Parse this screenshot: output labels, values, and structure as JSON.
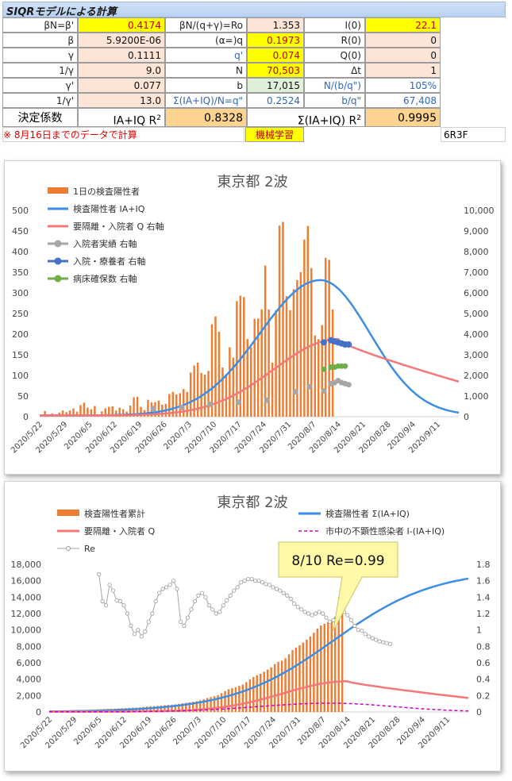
{
  "title": "SIQRモデルによる計算",
  "table": {
    "row1": {
      "a_label": "βN=β'",
      "a_val": "0.4174",
      "b_label": "βN/(q+γ)=Ro",
      "b_val": "1.353",
      "c_label": "I(0)",
      "c_val": "22.1"
    },
    "row2": {
      "a_label": "β",
      "a_val": "5.9200E-06",
      "b_label": "(α=)q",
      "b_val": "0.1973",
      "c_label": "R(0)",
      "c_val": "0"
    },
    "row3": {
      "a_label": "γ",
      "a_val": "0.1111",
      "b_label": "q'",
      "b_val": "0.074",
      "c_label": "Q(0)",
      "c_val": "0"
    },
    "row4": {
      "a_label": "1/γ",
      "a_val": "9.0",
      "b_label": "N",
      "b_val": "70,503",
      "c_label": "Δt",
      "c_val": "1"
    },
    "row5": {
      "a_label": "γ'",
      "a_val": "0.077",
      "b_label": "b",
      "b_val": "17,015",
      "c_label": "N/(b/q\")",
      "c_val": "105%"
    },
    "row6": {
      "a_label": "1/γ'",
      "a_val": "13.0",
      "b_label": "Σ(IA+IQ)/N=q\"",
      "b_val": "0.2524",
      "c_label": "b/q\"",
      "c_val": "67,408"
    },
    "row7": {
      "a_label": "決定係数",
      "mid_label": "IA+IQ R",
      "mid_sup": "2",
      "a_val": "0.8328",
      "c_label": "Σ(IA+IQ) R",
      "c_sup": "2",
      "c_val": "0.9995"
    },
    "note": "※ 8月16日までのデータで計算",
    "ml_label": "機械学習",
    "code": "6R3F"
  },
  "chart_data": [
    {
      "type": "bar",
      "title": "東京都 2波",
      "x_ticks": [
        "2020/5/22",
        "2020/5/29",
        "2020/6/5",
        "2020/6/12",
        "2020/6/19",
        "2020/6/26",
        "2020/7/3",
        "2020/7/10",
        "2020/7/17",
        "2020/7/24",
        "2020/7/31",
        "2020/8/7",
        "2020/8/14",
        "2020/8/21",
        "2020/8/28",
        "2020/9/4",
        "2020/9/11"
      ],
      "x_range_days": [
        0,
        118
      ],
      "ylim_left": [
        0,
        500
      ],
      "ylim_right": [
        0,
        10000
      ],
      "left_ticks": [
        "0",
        "50",
        "100",
        "150",
        "200",
        "250",
        "300",
        "350",
        "400",
        "450",
        "500"
      ],
      "right_ticks": [
        "0",
        "1,000",
        "2,000",
        "3,000",
        "4,000",
        "5,000",
        "6,000",
        "7,000",
        "8,000",
        "9,000",
        "10,000"
      ],
      "legend": [
        {
          "name": "1日の検査陽性者",
          "kind": "bar",
          "color": "#ed7d31"
        },
        {
          "name": "検査陽性者 IA+IQ",
          "kind": "line",
          "color": "#3a8ee6"
        },
        {
          "name": "要隔離・入院者 Q 右軸",
          "kind": "line",
          "color": "#f4777a"
        },
        {
          "name": "入院者実績 右軸",
          "kind": "dot",
          "color": "#a6a6a6"
        },
        {
          "name": "入院・療養者 右軸",
          "kind": "dot",
          "color": "#4472c4"
        },
        {
          "name": "病床確保数 右軸",
          "kind": "dot",
          "color": "#70ad47"
        }
      ],
      "daily_positive": [
        5,
        14,
        2,
        8,
        3,
        10,
        15,
        11,
        15,
        20,
        12,
        28,
        34,
        22,
        18,
        26,
        5,
        13,
        20,
        24,
        25,
        15,
        22,
        18,
        12,
        27,
        47,
        48,
        24,
        16,
        41,
        35,
        35,
        39,
        29,
        31,
        55,
        60,
        54,
        57,
        67,
        60,
        107,
        124,
        131,
        106,
        102,
        111,
        224,
        243,
        206,
        119,
        102,
        168,
        143,
        280,
        293,
        290,
        188,
        168,
        237,
        238,
        260,
        366,
        260,
        131,
        258,
        463,
        472,
        292,
        258,
        309,
        331,
        350,
        429,
        462,
        360,
        197,
        188,
        222,
        385,
        380,
        260
      ],
      "ia_iq_peak": {
        "day": 79,
        "value": 328
      },
      "q_peak": {
        "day": 84,
        "value": 3700
      },
      "q_end": {
        "day": 118,
        "value": 1700
      },
      "hospital_actual": [
        [
          32,
          400
        ],
        [
          40,
          450
        ],
        [
          48,
          600
        ],
        [
          56,
          700
        ],
        [
          64,
          800
        ],
        [
          72,
          1200
        ],
        [
          76,
          1450
        ],
        [
          80,
          1250
        ],
        [
          82,
          1600
        ],
        [
          83,
          1650
        ],
        [
          84,
          1750
        ],
        [
          85,
          1650
        ],
        [
          86,
          1600
        ],
        [
          87,
          1550
        ]
      ],
      "treatment": [
        [
          80,
          3600
        ],
        [
          82,
          3700
        ],
        [
          83,
          3650
        ],
        [
          84,
          3600
        ],
        [
          85,
          3550
        ],
        [
          86,
          3500
        ],
        [
          87,
          3500
        ]
      ],
      "beds": [
        [
          80,
          2300
        ],
        [
          82,
          2400
        ],
        [
          83,
          2400
        ],
        [
          84,
          2450
        ],
        [
          85,
          2450
        ],
        [
          86,
          2450
        ]
      ]
    },
    {
      "type": "bar",
      "title": "東京都 2波",
      "x_ticks": [
        "2020/5/22",
        "2020/5/29",
        "2020/6/5",
        "2020/6/12",
        "2020/6/19",
        "2020/6/26",
        "2020/7/3",
        "2020/7/10",
        "2020/7/17",
        "2020/7/24",
        "2020/7/31",
        "2020/8/7",
        "2020/8/14",
        "2020/8/21",
        "2020/8/28",
        "2020/9/4",
        "2020/9/11"
      ],
      "ylim_left": [
        0,
        18000
      ],
      "ylim_right": [
        0,
        1.8
      ],
      "left_ticks": [
        "0",
        "2,000",
        "4,000",
        "6,000",
        "8,000",
        "10,000",
        "12,000",
        "14,000",
        "16,000",
        "18,000"
      ],
      "right_ticks": [
        "0",
        "0.2",
        "0.4",
        "0.6",
        "0.8",
        "1",
        "1.2",
        "1.4",
        "1.6",
        "1.8"
      ],
      "legend": [
        {
          "name": "検査陽性者累計",
          "kind": "bar",
          "color": "#ed7d31"
        },
        {
          "name": "検査陽性者 Σ(IA+IQ)",
          "kind": "line",
          "color": "#3a8ee6"
        },
        {
          "name": "要隔離・入院者 Q",
          "kind": "line",
          "color": "#f4777a"
        },
        {
          "name": "市中の不顕性感染者 I-(IA+IQ)",
          "kind": "dash",
          "color": "#cc00cc"
        },
        {
          "name": "Re",
          "kind": "dotline",
          "color": "#a6a6a6"
        }
      ],
      "annotation": "8/10 Re=0.99",
      "cum_final": {
        "day": 86,
        "value": 12300
      },
      "sigma_end": {
        "day": 118,
        "value": 16900
      },
      "q_peak": {
        "day": 84,
        "value": 3700
      },
      "q_end": {
        "day": 118,
        "value": 1700
      },
      "i_peak": {
        "day": 79,
        "value": 1050
      },
      "re": [
        1.68,
        1.35,
        1.3,
        1.55,
        1.48,
        1.36,
        1.35,
        1.3,
        1.2,
        1.05,
        0.95,
        1.0,
        0.92,
        0.98,
        1.1,
        1.2,
        1.35,
        1.45,
        1.5,
        1.52,
        1.55,
        1.6,
        1.5,
        1.1,
        1.05,
        1.15,
        1.25,
        1.35,
        1.42,
        1.45,
        1.4,
        1.3,
        1.25,
        1.2,
        1.22,
        1.3,
        1.36,
        1.42,
        1.48,
        1.52,
        1.58,
        1.6,
        1.62,
        1.62,
        1.6,
        1.6,
        1.58,
        1.56,
        1.55,
        1.52,
        1.5,
        1.48,
        1.45,
        1.42,
        1.38,
        1.32,
        1.28,
        1.25,
        1.22,
        1.2,
        1.18,
        1.2,
        1.22,
        1.2,
        1.15,
        1.1,
        1.12,
        1.15,
        1.2,
        1.22,
        1.18,
        1.12,
        1.05,
        1.0,
        0.99,
        0.95,
        0.92,
        0.9,
        0.88,
        0.86,
        0.85,
        0.84,
        0.83
      ],
      "re_start_day": 14
    }
  ]
}
